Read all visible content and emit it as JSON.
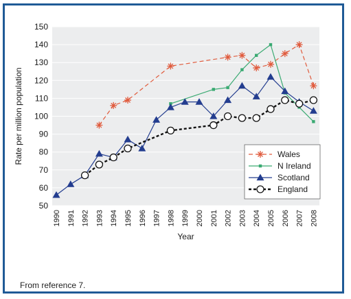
{
  "caption": "From reference 7.",
  "colors": {
    "frame": "#1f5a96",
    "plot_bg": "#ecedee",
    "wales": "#e05a3c",
    "n_ireland": "#3aaa72",
    "scotland": "#233d8f",
    "england": "#111111"
  },
  "chart_data": {
    "type": "line",
    "title": "",
    "xlabel": "Year",
    "ylabel": "Rate per million population",
    "xlim": [
      1990,
      2008
    ],
    "ylim": [
      50,
      150
    ],
    "yticks": [
      50,
      60,
      70,
      80,
      90,
      100,
      110,
      120,
      130,
      140,
      150
    ],
    "xticks": [
      "1990",
      "1991",
      "1992",
      "1993",
      "1994",
      "1995",
      "1996",
      "1997",
      "1998",
      "1999",
      "2000",
      "2001",
      "2002",
      "2003",
      "2004",
      "2005",
      "2006",
      "2007",
      "2008"
    ],
    "grid": "horizontal",
    "legend_position": "bottom-right",
    "series": [
      {
        "name": "Wales",
        "marker": "asterisk",
        "line": "dashed",
        "x": [
          1993,
          1994,
          1995,
          1998,
          2002,
          2003,
          2004,
          2005,
          2006,
          2007,
          2008
        ],
        "y": [
          95,
          106,
          109,
          128,
          133,
          134,
          127,
          129,
          135,
          140,
          117
        ]
      },
      {
        "name": "N Ireland",
        "marker": "small-square",
        "line": "solid",
        "x": [
          1998,
          2001,
          2002,
          2003,
          2004,
          2005,
          2006,
          2007,
          2008
        ],
        "y": [
          107,
          115,
          116,
          126,
          134,
          140,
          113,
          105,
          97
        ]
      },
      {
        "name": "Scotland",
        "marker": "triangle",
        "line": "solid",
        "x": [
          1990,
          1991,
          1992,
          1993,
          1994,
          1995,
          1996,
          1997,
          1998,
          1999,
          2000,
          2001,
          2002,
          2003,
          2004,
          2005,
          2006,
          2007,
          2008
        ],
        "y": [
          56,
          62,
          67,
          79,
          77,
          87,
          82,
          98,
          105,
          108,
          108,
          100,
          109,
          117,
          111,
          122,
          114,
          108,
          103
        ]
      },
      {
        "name": "England",
        "marker": "open-circle",
        "line": "dashed-bold",
        "x": [
          1992,
          1993,
          1994,
          1995,
          1998,
          2001,
          2002,
          2003,
          2004,
          2005,
          2006,
          2007,
          2008
        ],
        "y": [
          67,
          73,
          77,
          82,
          92,
          95,
          100,
          99,
          99,
          104,
          109,
          107,
          109
        ]
      }
    ]
  }
}
